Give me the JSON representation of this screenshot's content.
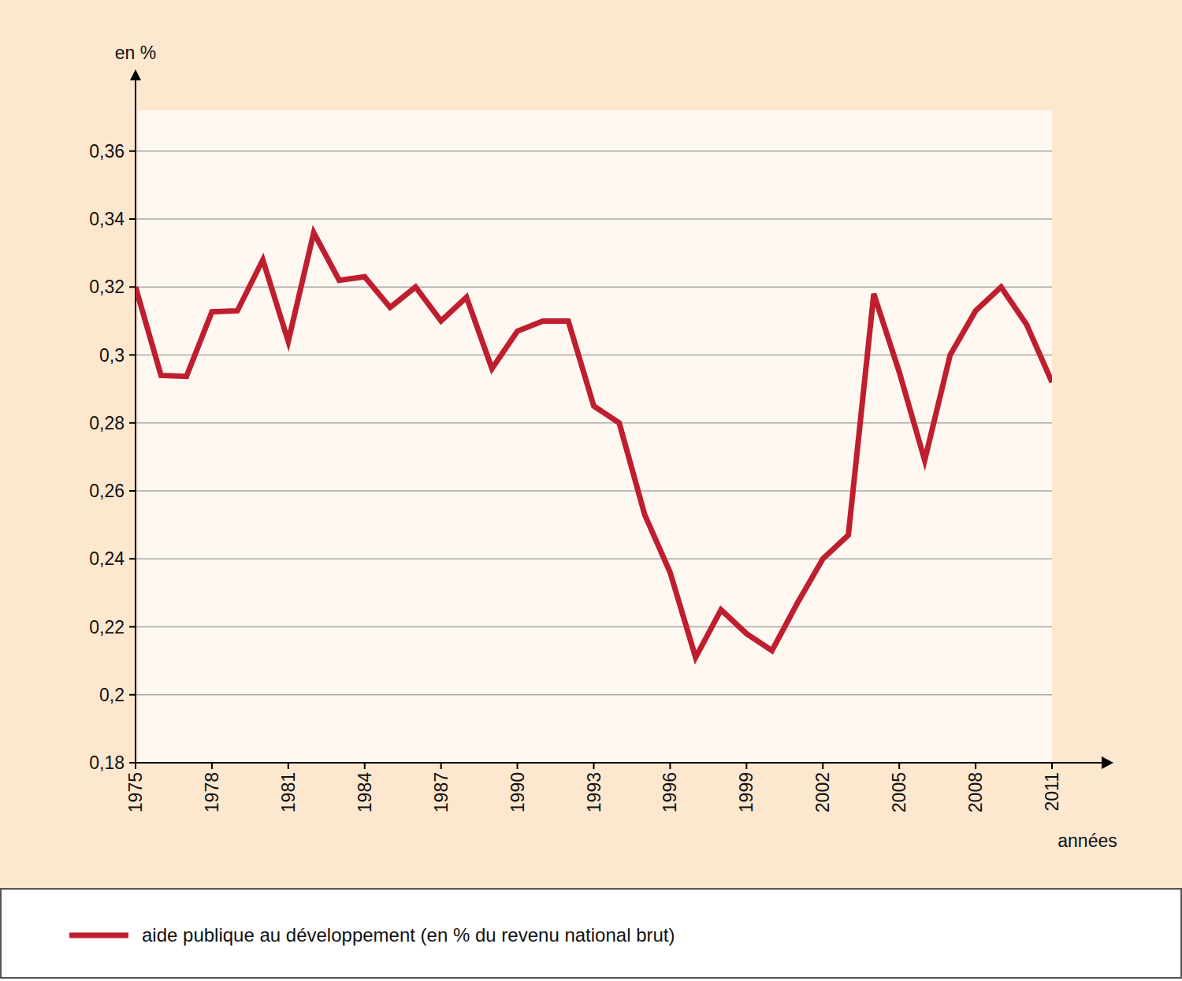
{
  "chart_data": {
    "type": "line",
    "x_label": "années",
    "y_label": "en %",
    "x": [
      1975,
      1976,
      1977,
      1978,
      1979,
      1980,
      1981,
      1982,
      1983,
      1984,
      1985,
      1986,
      1987,
      1988,
      1989,
      1990,
      1991,
      1992,
      1993,
      1994,
      1995,
      1996,
      1997,
      1998,
      1999,
      2000,
      2001,
      2002,
      2003,
      2004,
      2005,
      2006,
      2007,
      2008,
      2009,
      2010,
      2011
    ],
    "series": [
      {
        "name": "aide publique au développement (en % du revenu national brut)",
        "color": "#bf1e2e",
        "values": [
          0.32,
          0.294,
          0.2937,
          0.3127,
          0.313,
          0.328,
          0.304,
          0.336,
          0.322,
          0.323,
          0.314,
          0.32,
          0.31,
          0.317,
          0.296,
          0.307,
          0.31,
          0.31,
          0.285,
          0.28,
          0.253,
          0.236,
          0.211,
          0.225,
          0.218,
          0.213,
          0.227,
          0.24,
          0.247,
          0.318,
          0.295,
          0.269,
          0.3,
          0.313,
          0.32,
          0.309,
          0.292
        ]
      }
    ],
    "xlim": [
      1975,
      2011
    ],
    "xticks": [
      1975,
      1978,
      1981,
      1984,
      1987,
      1990,
      1993,
      1996,
      1999,
      2002,
      2005,
      2008,
      2011
    ],
    "ylim": [
      0.18,
      0.372
    ],
    "yticks": [
      {
        "value": 0.18,
        "label": "0,18"
      },
      {
        "value": 0.2,
        "label": "0,2"
      },
      {
        "value": 0.22,
        "label": "0,22"
      },
      {
        "value": 0.24,
        "label": "0,24"
      },
      {
        "value": 0.26,
        "label": "0,26"
      },
      {
        "value": 0.28,
        "label": "0,28"
      },
      {
        "value": 0.3,
        "label": "0,3"
      },
      {
        "value": 0.32,
        "label": "0,32"
      },
      {
        "value": 0.34,
        "label": "0,34"
      },
      {
        "value": 0.36,
        "label": "0,36"
      }
    ],
    "grid": true,
    "legend": "bottom-left"
  }
}
